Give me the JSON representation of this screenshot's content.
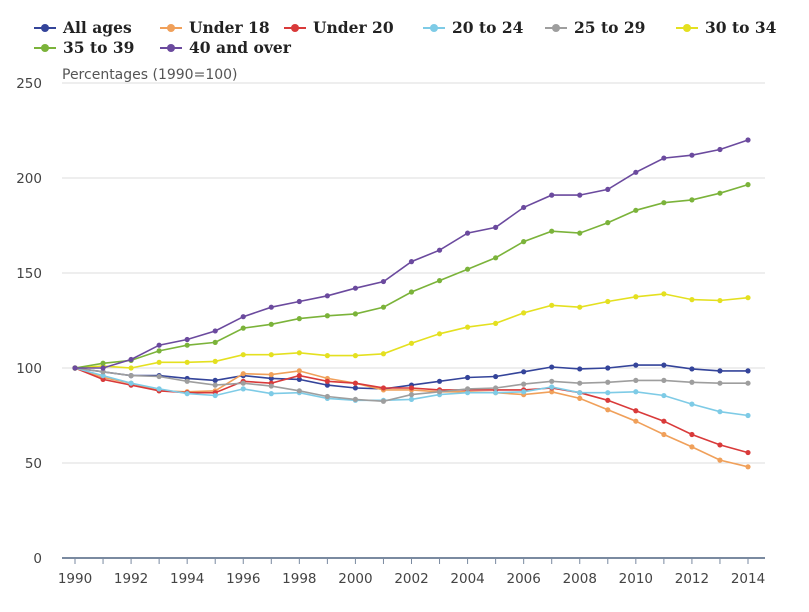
{
  "chart_data": {
    "type": "line",
    "subtitle": "Percentages (1990=100)",
    "x": [
      1990,
      1991,
      1992,
      1993,
      1994,
      1995,
      1996,
      1997,
      1998,
      1999,
      2000,
      2001,
      2002,
      2003,
      2004,
      2005,
      2006,
      2007,
      2008,
      2009,
      2010,
      2011,
      2012,
      2013,
      2014
    ],
    "x_tick_labels": [
      "1990",
      "1992",
      "1994",
      "1996",
      "1998",
      "2000",
      "2002",
      "2004",
      "2006",
      "2008",
      "2010",
      "2012",
      "2014"
    ],
    "x_ticks": [
      1990,
      1992,
      1994,
      1996,
      1998,
      2000,
      2002,
      2004,
      2006,
      2008,
      2010,
      2012,
      2014
    ],
    "y_tick_labels": [
      "0",
      "50",
      "100",
      "150",
      "200",
      "250"
    ],
    "y_ticks": [
      0,
      50,
      100,
      150,
      200,
      250
    ],
    "ylim": [
      0,
      250
    ],
    "xlim": [
      1990,
      2014
    ],
    "grid": true,
    "legend_position": "top",
    "series": [
      {
        "name": "All ages",
        "color": "#34449a",
        "values": [
          100,
          98,
          96,
          96,
          94.5,
          93.5,
          96,
          94.5,
          94,
          91,
          89.5,
          89,
          91,
          93,
          95,
          95.5,
          98,
          100.5,
          99.5,
          100,
          101.5,
          101.5,
          99.5,
          98.5,
          98.5
        ]
      },
      {
        "name": "Under 18",
        "color": "#f0a05a",
        "values": [
          100,
          95,
          92,
          88,
          87.5,
          88,
          97,
          96.5,
          98.5,
          94.5,
          92,
          88.5,
          88.5,
          87.5,
          87.5,
          87,
          86,
          87.5,
          84,
          78,
          72,
          65,
          58.5,
          51.5,
          48
        ]
      },
      {
        "name": "Under 20",
        "color": "#d93a3a",
        "values": [
          100,
          94,
          91,
          88,
          87,
          87,
          93,
          92,
          96,
          93,
          92,
          89.5,
          89.5,
          88.5,
          88.5,
          88.5,
          88.5,
          89.5,
          87,
          83,
          77.5,
          72,
          65,
          59.5,
          55.5
        ]
      },
      {
        "name": "20 to 24",
        "color": "#7ecbe6",
        "values": [
          100,
          96,
          92,
          89,
          86.5,
          85.5,
          89,
          86.5,
          87,
          84,
          83,
          83,
          83.5,
          86,
          87,
          87,
          87.5,
          90,
          87,
          87,
          87.5,
          85.5,
          81,
          77,
          75
        ]
      },
      {
        "name": "25 to 29",
        "color": "#9e9e9e",
        "values": [
          100,
          98,
          96,
          95.5,
          93,
          91,
          92,
          90.5,
          88,
          85,
          83.5,
          82.5,
          86,
          87.5,
          89,
          89.5,
          91.5,
          93,
          92,
          92.5,
          93.5,
          93.5,
          92.5,
          92,
          92
        ]
      },
      {
        "name": "30 to 34",
        "color": "#e4e020",
        "values": [
          100,
          101,
          100,
          103,
          103,
          103.5,
          107,
          107,
          108,
          106.5,
          106.5,
          107.5,
          113,
          118,
          121.5,
          123.5,
          129,
          133,
          132,
          135,
          137.5,
          139,
          136,
          135.5,
          137
        ]
      },
      {
        "name": "35 to 39",
        "color": "#7bb33a",
        "values": [
          100,
          102.5,
          104,
          109,
          112,
          113.5,
          121,
          123,
          126,
          127.5,
          128.5,
          132,
          140,
          146,
          152,
          158,
          166.5,
          172,
          171,
          176.5,
          183,
          187,
          188.5,
          192,
          196.5
        ]
      },
      {
        "name": "40 and over",
        "color": "#6b4a9e",
        "values": [
          100,
          100,
          104.5,
          112,
          115,
          119.5,
          127,
          132,
          135,
          138,
          142,
          145.5,
          156,
          162,
          171,
          174,
          184.5,
          191,
          191,
          194,
          203,
          210.5,
          212,
          215,
          220
        ]
      }
    ]
  }
}
